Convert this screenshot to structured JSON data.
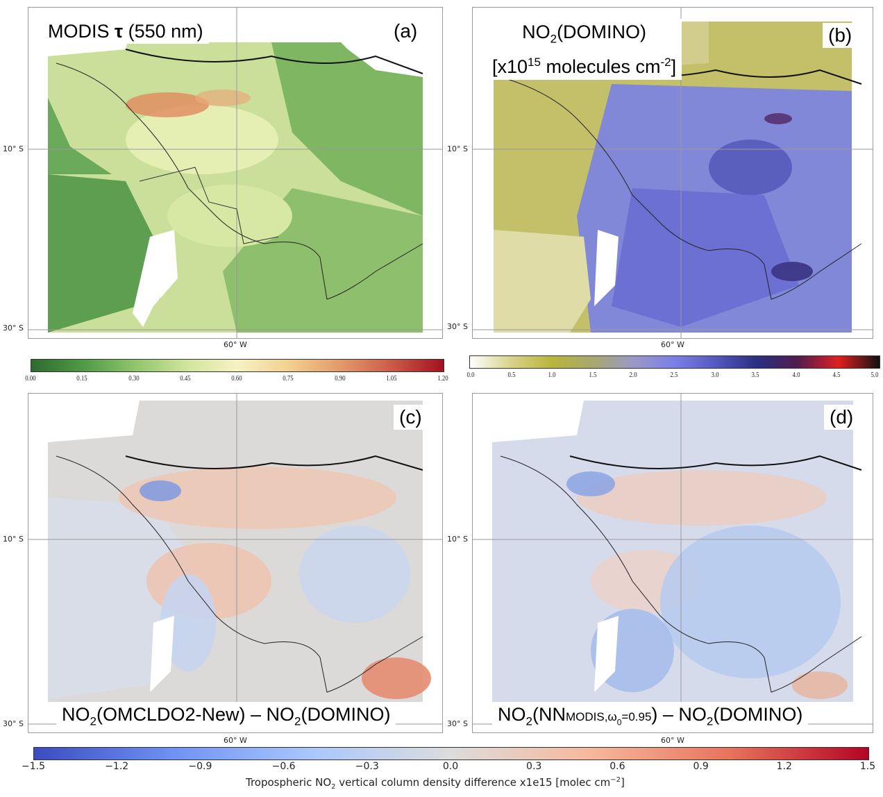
{
  "panels": [
    {
      "id": "a",
      "letter": "(a)",
      "title_main": "MODIS ",
      "title_sym": "τ",
      "title_rest": " (550 nm)",
      "lat_label": "10° S",
      "lat2_label": "30° S",
      "lon_label": "60° W",
      "palette": "aod"
    },
    {
      "id": "b",
      "letter": "(b)",
      "title_line1_pre": "NO",
      "title_line1_sub": "2",
      "title_line1_post": "(DOMINO)",
      "title_line2_pre": "[x10",
      "title_line2_sup": "15",
      "title_line2_mid": " molecules cm",
      "title_line2_sup2": "-2",
      "title_line2_post": "]",
      "lat_label": "10° S",
      "lat2_label": "30° S",
      "lon_label": "60° W",
      "palette": "no2"
    },
    {
      "id": "c",
      "letter": "(c)",
      "cap_a": "NO",
      "cap_a_sub": "2",
      "cap_b": "(OMCLDO2-New) – NO",
      "cap_b_sub": "2",
      "cap_c": "(DOMINO)",
      "lat_label": "10° S",
      "lat2_label": "30° S",
      "lon_label": "60° W",
      "palette": "diff_c"
    },
    {
      "id": "d",
      "letter": "(d)",
      "cap_a": "NO",
      "cap_a_sub": "2",
      "cap_b": "(NN",
      "cap_small": "MODIS,ω",
      "cap_small_sub": "0",
      "cap_small2": "=0.95",
      "cap_c": ") – NO",
      "cap_c_sub": "2",
      "cap_d": "(DOMINO)",
      "lat_label": "10° S",
      "lat2_label": "30° S",
      "lon_label": "60° W",
      "palette": "diff_d"
    }
  ],
  "colorbar_a": {
    "ticks": [
      "0.00",
      "0.15",
      "0.30",
      "0.45",
      "0.60",
      "0.75",
      "0.90",
      "1.05",
      "1.20"
    ],
    "colors": [
      "#2e6b2e",
      "#4f9a45",
      "#8fc46a",
      "#cfe59a",
      "#f7f2c4",
      "#f3d08e",
      "#e39a6a",
      "#cc5a48",
      "#a3101f"
    ]
  },
  "colorbar_b": {
    "ticks": [
      "0.0",
      "0.5",
      "1.0",
      "1.5",
      "2.0",
      "2.5",
      "3.0",
      "3.5",
      "4.0",
      "4.5",
      "5.0"
    ],
    "colors": [
      "#ffffff",
      "#d8d38a",
      "#b9b53c",
      "#a8a86e",
      "#9a98c8",
      "#7b7fe6",
      "#5558c0",
      "#2a2f80",
      "#501c50",
      "#e02020",
      "#111111"
    ]
  },
  "colorbar_c": {
    "ticks": [
      "−1.5",
      "−1.2",
      "−0.9",
      "−0.6",
      "−0.3",
      "0.0",
      "0.3",
      "0.6",
      "0.9",
      "1.2",
      "1.5"
    ],
    "title_pre": "Tropospheric NO",
    "title_sub": "2",
    "title_post": " vertical column density difference x1e15  [molec cm",
    "title_sup": "−2",
    "title_end": "]",
    "colors": [
      "#3b4cc0",
      "#6f92f3",
      "#aac7fd",
      "#dddcdc",
      "#f7b89c",
      "#e7745b",
      "#b40426"
    ]
  }
}
